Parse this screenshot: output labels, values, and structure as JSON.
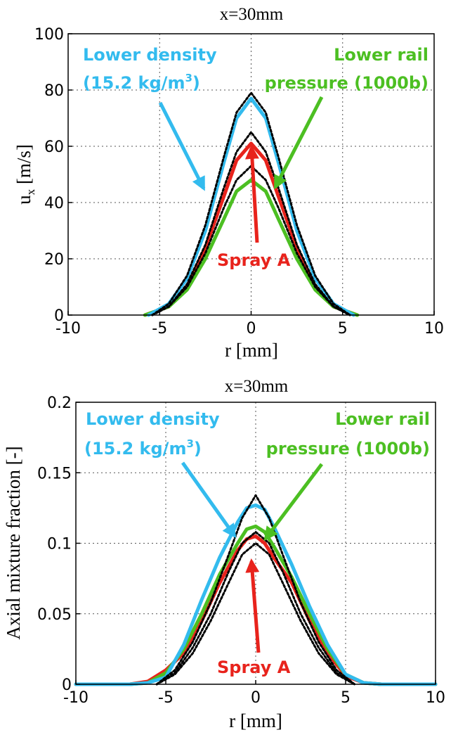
{
  "colors": {
    "spray_a": "#e8231c",
    "lower_density": "#33bbee",
    "lower_rail": "#4cbf22",
    "model": "#000000",
    "grid": "#555555"
  },
  "chart_data": [
    {
      "type": "line",
      "title": "x=30mm",
      "xlabel": "r [mm]",
      "ylabel_main": "u",
      "ylabel_sub": "x",
      "ylabel_unit": " [m/s]",
      "xlim": [
        -10,
        10
      ],
      "ylim": [
        0,
        100
      ],
      "xticks": [
        "-10",
        "-5",
        "0",
        "5",
        "10"
      ],
      "yticks": [
        "0",
        "20",
        "40",
        "60",
        "80",
        "100"
      ],
      "grid": true,
      "series": [
        {
          "key": "lower_density",
          "x": [
            -5.6,
            -4.5,
            -3.5,
            -2.5,
            -1.5,
            -0.8,
            0,
            0.8,
            1.5,
            2.5,
            3.5,
            4.5,
            5.6
          ],
          "y": [
            0,
            4,
            13,
            30,
            54,
            70,
            77,
            70,
            54,
            30,
            13,
            4,
            0
          ]
        },
        {
          "key": "spray_a",
          "x": [
            -5.8,
            -4.5,
            -3.5,
            -2.5,
            -1.5,
            -0.8,
            0,
            0.8,
            1.5,
            2.5,
            3.5,
            4.5,
            5.8
          ],
          "y": [
            0,
            3,
            10,
            24,
            42,
            55,
            61,
            55,
            42,
            24,
            10,
            3,
            0
          ]
        },
        {
          "key": "lower_rail",
          "x": [
            -5.8,
            -4.5,
            -3.5,
            -2.5,
            -1.5,
            -0.8,
            0,
            0.8,
            1.5,
            2.5,
            3.5,
            4.5,
            5.8
          ],
          "y": [
            0,
            3,
            9,
            20,
            34,
            44,
            48,
            44,
            34,
            20,
            9,
            3,
            0
          ]
        },
        {
          "key": "model",
          "dashed": true,
          "x": [
            -5.4,
            -4.5,
            -3.5,
            -2.5,
            -1.5,
            -0.8,
            0,
            0.8,
            1.5,
            2.5,
            3.5,
            4.5,
            5.4
          ],
          "y": [
            0,
            4,
            14,
            32,
            56,
            72,
            79,
            72,
            56,
            32,
            14,
            4,
            0
          ]
        },
        {
          "key": "model",
          "dashed": true,
          "x": [
            -5.4,
            -4.5,
            -3.5,
            -2.5,
            -1.5,
            -0.8,
            0,
            0.8,
            1.5,
            2.5,
            3.5,
            4.5,
            5.4
          ],
          "y": [
            0,
            3,
            11,
            25,
            45,
            58,
            65,
            58,
            45,
            25,
            11,
            3,
            0
          ]
        },
        {
          "key": "model",
          "dashed": true,
          "x": [
            -5.4,
            -4.5,
            -3.5,
            -2.5,
            -1.5,
            -0.8,
            0,
            0.8,
            1.5,
            2.5,
            3.5,
            4.5,
            5.4
          ],
          "y": [
            0,
            3,
            10,
            22,
            38,
            48,
            53,
            48,
            38,
            22,
            10,
            3,
            0
          ]
        }
      ],
      "annotations": {
        "lower_density": {
          "line1": "Lower density",
          "line2": "(15.2 kg/m",
          "sup": "3",
          "close": ")"
        },
        "lower_rail": {
          "line1": "Lower rail",
          "line2": "pressure (1000b)"
        },
        "spray_a": {
          "line1": "Spray A"
        }
      }
    },
    {
      "type": "line",
      "title": "x=30mm",
      "xlabel": "r [mm]",
      "ylabel": "Axial mixture fraction [-]",
      "xlim": [
        -10,
        10
      ],
      "ylim": [
        0,
        0.2
      ],
      "xticks": [
        "-10",
        "-5",
        "0",
        "5",
        "10"
      ],
      "yticks": [
        "0",
        "0.05",
        "0.1",
        "0.15",
        "0.2"
      ],
      "grid": true,
      "series": [
        {
          "key": "lower_density",
          "x": [
            -10,
            -7,
            -6,
            -5,
            -4,
            -3,
            -2,
            -1,
            -0.5,
            0,
            0.5,
            1,
            2,
            3,
            4,
            5,
            6,
            7,
            10
          ],
          "y": [
            0,
            0,
            0.001,
            0.005,
            0.028,
            0.06,
            0.09,
            0.115,
            0.125,
            0.127,
            0.124,
            0.112,
            0.085,
            0.055,
            0.028,
            0.007,
            0.001,
            0,
            0
          ]
        },
        {
          "key": "spray_a",
          "x": [
            -10,
            -7,
            -6,
            -5,
            -4,
            -3,
            -2,
            -1,
            -0.5,
            0,
            0.5,
            1,
            2,
            3,
            4,
            5,
            6,
            7,
            10
          ],
          "y": [
            0,
            0,
            0.002,
            0.01,
            0.022,
            0.045,
            0.072,
            0.095,
            0.103,
            0.105,
            0.1,
            0.09,
            0.072,
            0.045,
            0.022,
            0.006,
            0.001,
            0,
            0
          ]
        },
        {
          "key": "lower_rail",
          "x": [
            -10,
            -7,
            -6,
            -5,
            -4,
            -3,
            -2,
            -1,
            -0.5,
            0,
            0.5,
            1,
            2,
            3,
            4,
            5,
            6,
            7,
            10
          ],
          "y": [
            0,
            0,
            0.001,
            0.008,
            0.025,
            0.05,
            0.078,
            0.1,
            0.11,
            0.112,
            0.108,
            0.098,
            0.076,
            0.05,
            0.025,
            0.007,
            0.001,
            0,
            0
          ]
        },
        {
          "key": "model",
          "dashed": true,
          "x": [
            -5.5,
            -4.5,
            -3.5,
            -2.5,
            -1.5,
            -0.75,
            0,
            0.75,
            1.5,
            2.5,
            3.5,
            4.5,
            5.5
          ],
          "y": [
            0,
            0.01,
            0.03,
            0.058,
            0.092,
            0.118,
            0.134,
            0.118,
            0.092,
            0.058,
            0.03,
            0.01,
            0
          ]
        },
        {
          "key": "model",
          "dashed": true,
          "x": [
            -5.5,
            -4.5,
            -3.5,
            -2.5,
            -1.5,
            -0.75,
            0,
            0.75,
            1.5,
            2.5,
            3.5,
            4.5,
            5.5
          ],
          "y": [
            0,
            0.008,
            0.026,
            0.05,
            0.08,
            0.1,
            0.108,
            0.1,
            0.08,
            0.05,
            0.026,
            0.008,
            0
          ]
        },
        {
          "key": "model",
          "dashed": true,
          "x": [
            -5.5,
            -4.5,
            -3.5,
            -2.5,
            -1.5,
            -0.75,
            0,
            0.75,
            1.5,
            2.5,
            3.5,
            4.5,
            5.5
          ],
          "y": [
            0,
            0.007,
            0.022,
            0.045,
            0.072,
            0.092,
            0.1,
            0.092,
            0.072,
            0.045,
            0.022,
            0.007,
            0
          ]
        }
      ],
      "annotations": {
        "lower_density": {
          "line1": "Lower density",
          "line2": "(15.2 kg/m",
          "sup": "3",
          "close": ")"
        },
        "lower_rail": {
          "line1": "Lower rail",
          "line2": "pressure (1000b)"
        },
        "spray_a": {
          "line1": "Spray A"
        }
      }
    }
  ]
}
